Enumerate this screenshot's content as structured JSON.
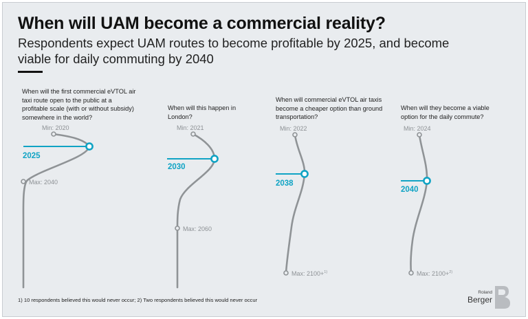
{
  "header": {
    "title": "When will UAM become a commercial reality?",
    "subtitle": "Respondents expect UAM routes to become profitable by 2025, and become viable for daily commuting by 2040"
  },
  "colors": {
    "accent": "#0fa3c4",
    "curve": "#8f9396",
    "background": "#e9ecef",
    "text": "#222222"
  },
  "chart_data": {
    "type": "line",
    "panels": [
      {
        "question": "When will the first commercial eVTOL air taxi route open to the public at a profitable scale (with or without subsidy) somewhere in the world?",
        "min_label": "Min: 2020",
        "answer_label": "2025",
        "max_label": "Max: 2040",
        "min": 2020,
        "answer": 2025,
        "max": 2040
      },
      {
        "question": "When will this happen in London?",
        "min_label": "Min: 2021",
        "answer_label": "2030",
        "max_label": "Max: 2060",
        "min": 2021,
        "answer": 2030,
        "max": 2060
      },
      {
        "question": "When will commercial eVTOL air taxis become a cheaper option than ground transportation?",
        "min_label": "Min: 2022",
        "answer_label": "2038",
        "max_label": "Max: 2100+",
        "max_note": "1)",
        "min": 2022,
        "answer": 2038,
        "max": "2100+"
      },
      {
        "question": "When will they become a viable option for the daily commute?",
        "min_label": "Min: 2024",
        "answer_label": "2040",
        "max_label": "Max: 2100+",
        "max_note": "2)",
        "min": 2024,
        "answer": 2040,
        "max": "2100+"
      }
    ]
  },
  "footnote": "1) 10 respondents believed this would never occur; 2) Two respondents believed this would never occur",
  "logo": {
    "line1": "Roland",
    "line2": "Berger"
  }
}
